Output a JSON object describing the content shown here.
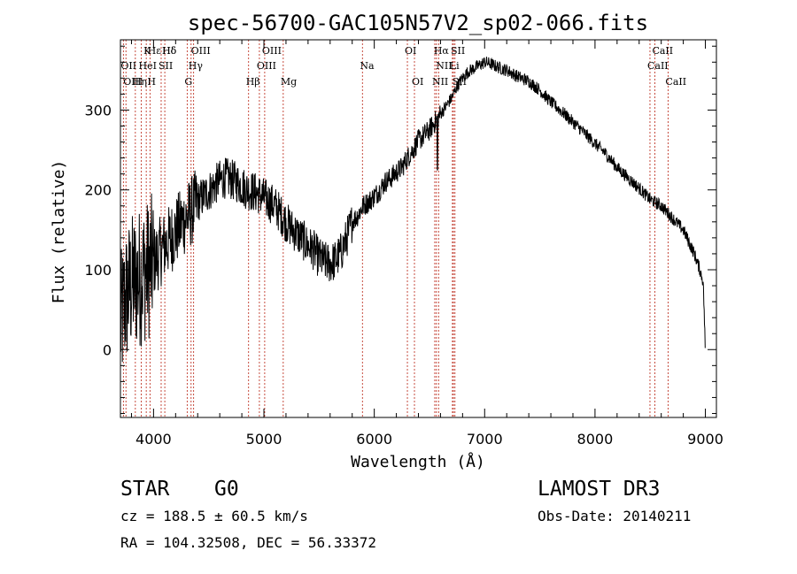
{
  "chart_data": {
    "type": "line",
    "title": "spec-56700-GAC105N57V2_sp02-066.fits",
    "xlabel": "Wavelength (Å)",
    "ylabel": "Flux (relative)",
    "xlim": [
      3700,
      9100
    ],
    "ylim": [
      -85,
      388
    ],
    "xticks": [
      4000,
      5000,
      6000,
      7000,
      8000,
      9000
    ],
    "yticks": [
      0,
      100,
      200,
      300
    ],
    "grid": false,
    "series": [
      {
        "name": "spectrum",
        "x": [
          3700,
          3740,
          3780,
          3820,
          3860,
          3900,
          3950,
          4000,
          4050,
          4100,
          4150,
          4200,
          4250,
          4300,
          4350,
          4400,
          4450,
          4500,
          4550,
          4600,
          4650,
          4700,
          4750,
          4800,
          4850,
          4900,
          4950,
          5000,
          5050,
          5100,
          5150,
          5200,
          5250,
          5300,
          5350,
          5400,
          5450,
          5500,
          5550,
          5600,
          5650,
          5700,
          5750,
          5800,
          5850,
          5900,
          5950,
          6000,
          6050,
          6100,
          6150,
          6200,
          6250,
          6300,
          6350,
          6400,
          6450,
          6500,
          6550,
          6600,
          6650,
          6700,
          6750,
          6800,
          6850,
          6900,
          6950,
          7000,
          7050,
          7100,
          7150,
          7200,
          7300,
          7400,
          7500,
          7600,
          7700,
          7800,
          7900,
          8000,
          8100,
          8200,
          8300,
          8400,
          8500,
          8600,
          8700,
          8800,
          8850,
          8900,
          8950,
          8980,
          9000
        ],
        "values": [
          30,
          60,
          75,
          85,
          88,
          95,
          100,
          110,
          120,
          130,
          138,
          148,
          158,
          165,
          175,
          185,
          192,
          198,
          205,
          212,
          215,
          213,
          210,
          205,
          200,
          198,
          195,
          190,
          185,
          180,
          170,
          160,
          152,
          145,
          138,
          130,
          125,
          115,
          110,
          108,
          112,
          122,
          140,
          160,
          168,
          180,
          185,
          192,
          200,
          210,
          215,
          222,
          228,
          240,
          250,
          262,
          268,
          275,
          285,
          295,
          305,
          315,
          330,
          340,
          348,
          352,
          356,
          360,
          358,
          355,
          352,
          350,
          342,
          336,
          325,
          310,
          298,
          285,
          272,
          258,
          245,
          228,
          215,
          202,
          188,
          180,
          165,
          150,
          135,
          120,
          100,
          85,
          2
        ]
      }
    ],
    "lines": [
      {
        "label": "Hδ",
        "x": 4102,
        "row": 0
      },
      {
        "label": "Hε",
        "x": 3970,
        "row": 0
      },
      {
        "label": "K",
        "x": 3934,
        "row": 0
      },
      {
        "label": "Hδ",
        "x": 4102,
        "row": 0
      },
      {
        "label": "OIII",
        "x": 4363,
        "row": 0
      },
      {
        "label": "OIII",
        "x": 5007,
        "row": 0
      },
      {
        "label": "OI",
        "x": 6300,
        "row": 0
      },
      {
        "label": "Hα",
        "x": 6563,
        "row": 0
      },
      {
        "label": "SII",
        "x": 6717,
        "row": 0
      },
      {
        "label": "CaII",
        "x": 8542,
        "row": 0
      },
      {
        "label": "OII",
        "x": 3727,
        "row": 1
      },
      {
        "label": "HeI",
        "x": 3889,
        "row": 1
      },
      {
        "label": "SII",
        "x": 4069,
        "row": 1
      },
      {
        "label": "Hγ",
        "x": 4340,
        "row": 1
      },
      {
        "label": "OIII",
        "x": 4959,
        "row": 1
      },
      {
        "label": "Na",
        "x": 5893,
        "row": 1
      },
      {
        "label": "NII",
        "x": 6583,
        "row": 1
      },
      {
        "label": "Li",
        "x": 6708,
        "row": 1
      },
      {
        "label": "CaII",
        "x": 8498,
        "row": 1
      },
      {
        "label": "OIII",
        "x": 3750,
        "row": 2
      },
      {
        "label": "Hη",
        "x": 3835,
        "row": 2
      },
      {
        "label": "H",
        "x": 3968,
        "row": 2
      },
      {
        "label": "G",
        "x": 4305,
        "row": 2
      },
      {
        "label": "Hβ",
        "x": 4861,
        "row": 2
      },
      {
        "label": "Mg",
        "x": 5175,
        "row": 2
      },
      {
        "label": "OI",
        "x": 6364,
        "row": 2
      },
      {
        "label": "NII",
        "x": 6548,
        "row": 2
      },
      {
        "label": "SII",
        "x": 6731,
        "row": 2
      },
      {
        "label": "CaII",
        "x": 8662,
        "row": 2
      }
    ],
    "line_positions": [
      3727,
      3750,
      3835,
      3889,
      3934,
      3968,
      4069,
      4102,
      4305,
      4340,
      4363,
      4861,
      4959,
      5007,
      5175,
      5893,
      6300,
      6364,
      6548,
      6563,
      6583,
      6708,
      6717,
      6731,
      8498,
      8542,
      8662
    ]
  },
  "info": {
    "object_class": "STAR",
    "subclass": "G0",
    "survey": "LAMOST DR3",
    "cz": "cz = 188.5 ± 60.5 km/s",
    "obs_date": "Obs-Date: 20140211",
    "coords": "RA = 104.32508, DEC =  56.33372"
  }
}
